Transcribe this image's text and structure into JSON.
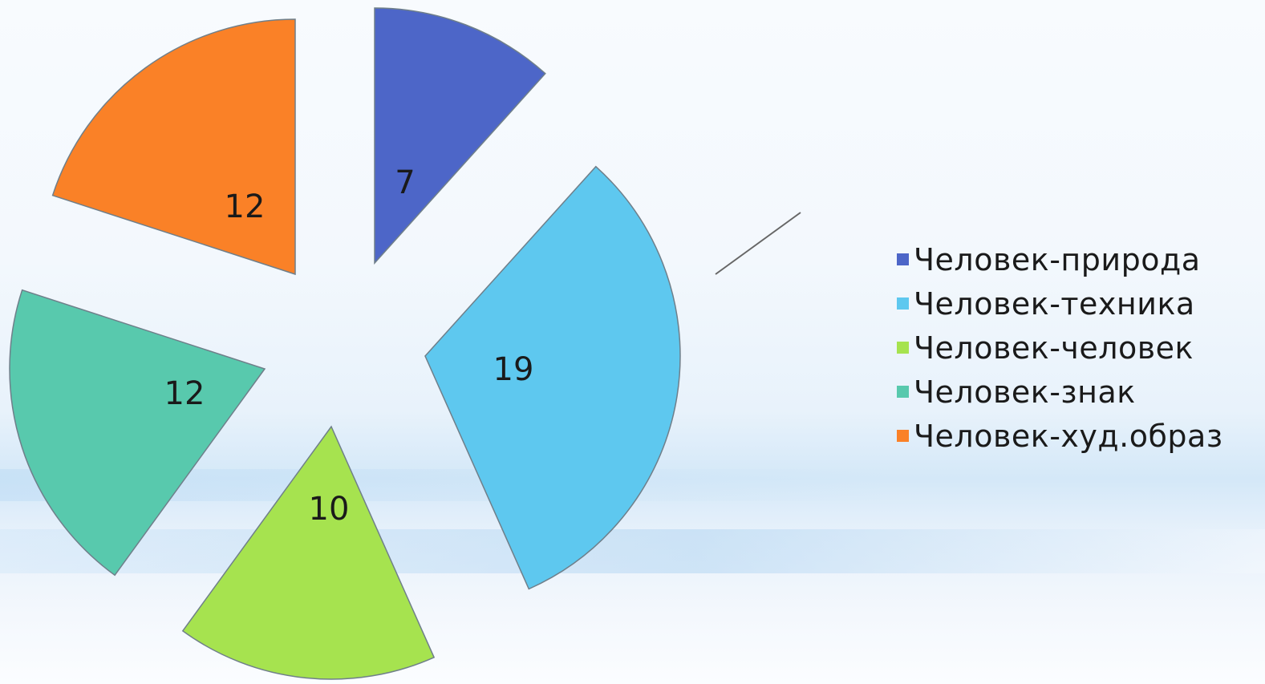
{
  "chart_data": {
    "type": "pie",
    "categories": [
      "Человек-природа",
      "Человек-техника",
      "Человек-человек",
      "Человек-знак",
      "Человек-худ.образ"
    ],
    "values": [
      7,
      19,
      10,
      12,
      12
    ],
    "colors": [
      "#4d66c8",
      "#5ec8ef",
      "#a6e34f",
      "#58c9ad",
      "#fa8127"
    ],
    "data_labels": [
      "7",
      "19",
      "10",
      "12",
      "12"
    ],
    "exploded": true,
    "legend_position": "right",
    "title": ""
  }
}
